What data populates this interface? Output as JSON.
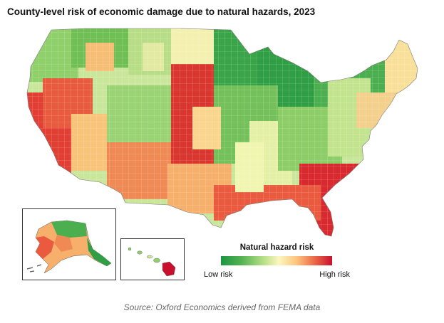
{
  "title": "County-level risk of economic damage due to natural hazards, 2023",
  "legend": {
    "title": "Natural hazard risk",
    "low_label": "Low risk",
    "high_label": "High risk",
    "scale_colors": [
      "#1a9641",
      "#77c35c",
      "#d5ee9b",
      "#fee9a6",
      "#fdae61",
      "#e8553a",
      "#c8102e"
    ]
  },
  "source": "Source: Oxford Economics derived from FEMA data",
  "colors": {
    "low": "#1a9641",
    "mid": "#ffffbf",
    "high": "#c8102e",
    "border": "#ffffff"
  }
}
